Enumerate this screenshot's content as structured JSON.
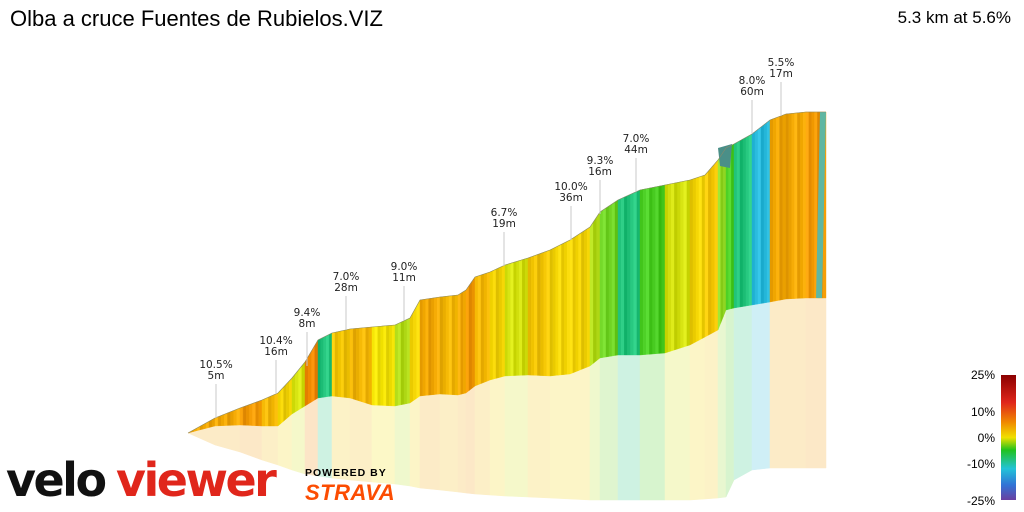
{
  "header": {
    "title": "Olba a cruce Fuentes de Rubielos.VIZ",
    "summary": "5.3 km at 5.6%"
  },
  "branding": {
    "logo_text": "veloviewer",
    "powered_by": "POWERED BY",
    "strava": "STRAVA"
  },
  "colors": {
    "logo_dark": "#111111",
    "logo_red": "#e0261b",
    "strava": "#fc4c02"
  },
  "chart_data": {
    "type": "area",
    "title": "Olba a cruce Fuentes de Rubielos.VIZ",
    "subtitle": "5.3 km at 5.6%",
    "xlabel": "",
    "ylabel": "",
    "annotations": [
      {
        "gradient": "10.5%",
        "length": "5m"
      },
      {
        "gradient": "10.4%",
        "length": "16m"
      },
      {
        "gradient": "9.4%",
        "length": "8m"
      },
      {
        "gradient": "7.0%",
        "length": "28m"
      },
      {
        "gradient": "9.0%",
        "length": "11m"
      },
      {
        "gradient": "6.7%",
        "length": "19m"
      },
      {
        "gradient": "10.0%",
        "length": "36m"
      },
      {
        "gradient": "9.3%",
        "length": "16m"
      },
      {
        "gradient": "7.0%",
        "length": "44m"
      },
      {
        "gradient": "8.0%",
        "length": "60m"
      },
      {
        "gradient": "5.5%",
        "length": "17m"
      }
    ],
    "legend": {
      "placement": "right",
      "ticks": [
        "25%",
        "10%",
        "0%",
        "-10%",
        "-25%"
      ],
      "values": [
        25,
        10,
        0,
        -10,
        -25
      ]
    },
    "gradient_segments": [
      10,
      10,
      11,
      9,
      7,
      5,
      12,
      -2,
      8,
      9,
      6,
      4,
      7,
      10,
      9,
      10,
      11,
      9,
      7,
      5,
      8,
      7,
      7,
      4,
      2,
      -2,
      1,
      5,
      7,
      8,
      3,
      1,
      -2,
      -5
    ]
  }
}
